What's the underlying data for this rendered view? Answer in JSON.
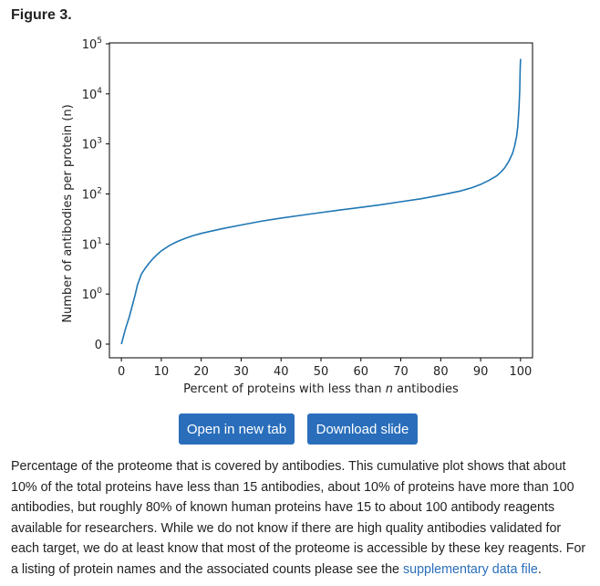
{
  "figure_label": "Figure 3.",
  "buttons": {
    "open_new_tab": "Open in new tab",
    "download_slide": "Download slide"
  },
  "caption": {
    "text": "Percentage of the proteome that is covered by antibodies. This cumulative plot shows that about 10% of the total proteins have less than 15 antibodies, about 10% of proteins have more than 100 antibodies, but roughly 80% of known human proteins have 15 to about 100 antibody reagents available for researchers. While we do not know if there are high quality antibodies validated for each target, we do at least know that most of the proteome is accessible by these key reagents. For a listing of protein names and the associated counts please see the",
    "link_text": "supplementary data file",
    "end": "."
  },
  "colors": {
    "line": "#1f77b4",
    "button": "#2a6ebb",
    "link": "#2a6ebb"
  },
  "chart_data": {
    "type": "line",
    "xlabel_prefix": "Percent of proteins with less than ",
    "xlabel_var": "n",
    "xlabel_suffix": " antibodies",
    "ylabel": "Number of antibodies per protein (n)",
    "y_scale": "symlog",
    "xlim": [
      -3,
      103
    ],
    "xticks": [
      0,
      10,
      20,
      30,
      40,
      50,
      60,
      70,
      80,
      90,
      100
    ],
    "yticks": [
      {
        "value": 0,
        "label": "0"
      },
      {
        "value": 1,
        "label": "10",
        "exp": "0"
      },
      {
        "value": 10,
        "label": "10",
        "exp": "1"
      },
      {
        "value": 100,
        "label": "10",
        "exp": "2"
      },
      {
        "value": 1000,
        "label": "10",
        "exp": "3"
      },
      {
        "value": 10000,
        "label": "10",
        "exp": "4"
      },
      {
        "value": 100000,
        "label": "10",
        "exp": "5"
      }
    ],
    "grid": false,
    "series": [
      {
        "x": [
          0,
          1,
          2,
          3,
          3.5,
          4,
          5,
          6,
          7,
          8,
          9,
          10,
          12,
          14,
          16,
          18,
          20,
          25,
          30,
          35,
          40,
          45,
          50,
          55,
          60,
          65,
          70,
          75,
          80,
          85,
          88,
          90,
          92,
          94,
          95,
          96,
          97,
          98,
          98.5,
          99,
          99.3,
          99.6,
          99.8,
          99.9,
          100
        ],
        "y": [
          0,
          0.3,
          0.55,
          0.85,
          1,
          1.5,
          2.5,
          3.3,
          4.2,
          5.2,
          6.2,
          7.3,
          9.3,
          11.2,
          13,
          14.7,
          16.3,
          20,
          24,
          28.5,
          33,
          37.5,
          42.5,
          48,
          54,
          61,
          70,
          80,
          95,
          115,
          135,
          155,
          185,
          230,
          270,
          330,
          440,
          650,
          900,
          1400,
          2200,
          5000,
          12000,
          30000,
          50000
        ]
      }
    ]
  }
}
